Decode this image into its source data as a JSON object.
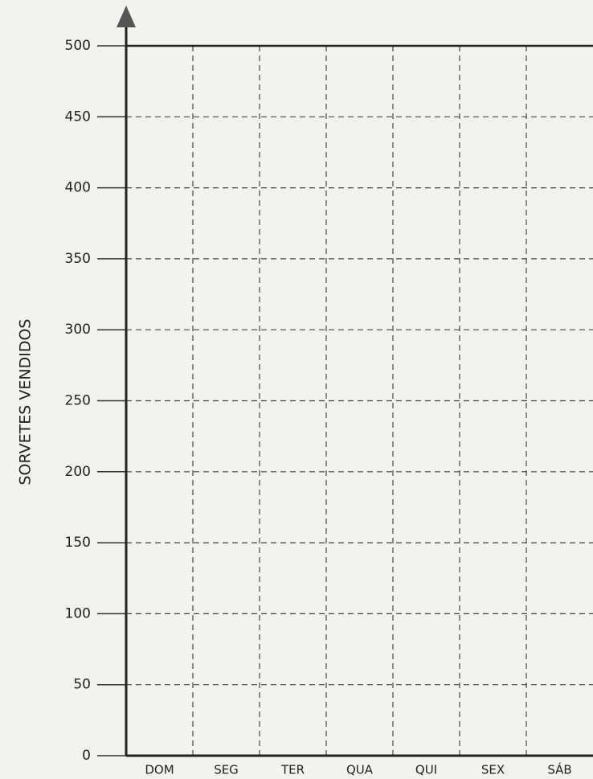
{
  "chart_data": {
    "type": "bar",
    "ylabel": "SORVETES VENDIDOS",
    "categories": [
      "DOM",
      "SEG",
      "TER",
      "QUA",
      "QUI",
      "SEX",
      "SÁB"
    ],
    "ylim": [
      0,
      500
    ],
    "yticks": [
      0,
      50,
      100,
      150,
      200,
      250,
      300,
      350,
      400,
      450,
      500
    ],
    "grid": true
  }
}
